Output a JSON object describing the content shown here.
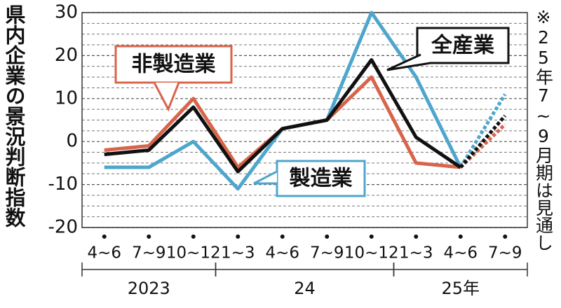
{
  "chart_data": {
    "type": "line",
    "title": "県内企業の景況判断指数",
    "note": "※25年7~9月期は見通し",
    "categories": [
      "4~6",
      "7~9",
      "10~12",
      "1~3",
      "4~6",
      "7~9",
      "10~12",
      "1~3",
      "4~6",
      "7~9"
    ],
    "groups": [
      {
        "label": "2023",
        "start": 0,
        "end": 2
      },
      {
        "label": "24",
        "start": 3,
        "end": 6
      },
      {
        "label": "25年",
        "start": 7,
        "end": 9
      }
    ],
    "series": [
      {
        "name": "製造業",
        "color": "#4ea6cc",
        "values": [
          -6,
          -6,
          0,
          -11,
          3,
          5,
          30,
          15,
          -6,
          11
        ]
      },
      {
        "name": "非製造業",
        "color": "#d8644a",
        "values": [
          -2,
          -1,
          10,
          -6,
          3,
          5,
          15,
          -5,
          -6,
          4
        ]
      },
      {
        "name": "全産業",
        "color": "#111111",
        "values": [
          -3,
          -2,
          8,
          -7,
          3,
          5,
          19,
          1,
          -6,
          6
        ]
      }
    ],
    "dashed_last_segment": true,
    "ylim": [
      -20,
      30
    ],
    "yticks": [
      30,
      20,
      10,
      0,
      -10,
      -20
    ],
    "grid": true
  }
}
